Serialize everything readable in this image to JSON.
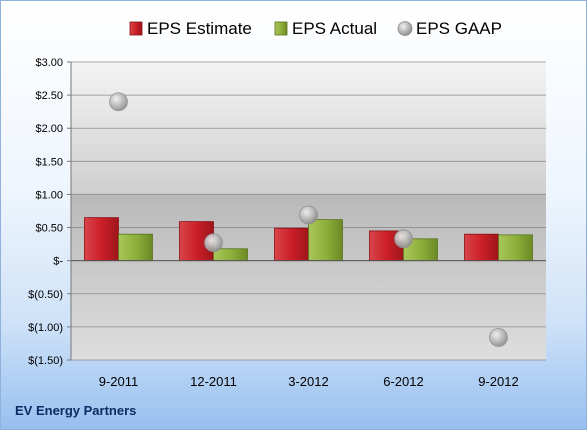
{
  "company": "EV Energy Partners",
  "chart_data": {
    "type": "bar",
    "categories": [
      "9-2011",
      "12-2011",
      "3-2012",
      "6-2012",
      "9-2012"
    ],
    "series": [
      {
        "name": "EPS Estimate",
        "type": "bar",
        "color": "#cc1f27",
        "values": [
          0.65,
          0.59,
          0.49,
          0.45,
          0.4
        ]
      },
      {
        "name": "EPS Actual",
        "type": "bar",
        "color": "#8fb03b",
        "values": [
          0.4,
          0.18,
          0.62,
          0.33,
          0.39
        ]
      },
      {
        "name": "EPS GAAP",
        "type": "scatter",
        "color": "#a8a8a8",
        "values": [
          2.4,
          0.27,
          0.69,
          0.33,
          -1.16
        ]
      }
    ],
    "yticks": [
      3.0,
      2.5,
      2.0,
      1.5,
      1.0,
      0.5,
      0,
      -0.5,
      -1.0,
      -1.5
    ],
    "ytick_labels": [
      "$3.00",
      "$2.50",
      "$2.00",
      "$1.50",
      "$1.00",
      "$0.50",
      "$-",
      "$(0.50)",
      "$(1.00)",
      "$(1.50)"
    ],
    "ylim": [
      -1.5,
      3.0
    ],
    "grid": true,
    "legend": "top"
  }
}
